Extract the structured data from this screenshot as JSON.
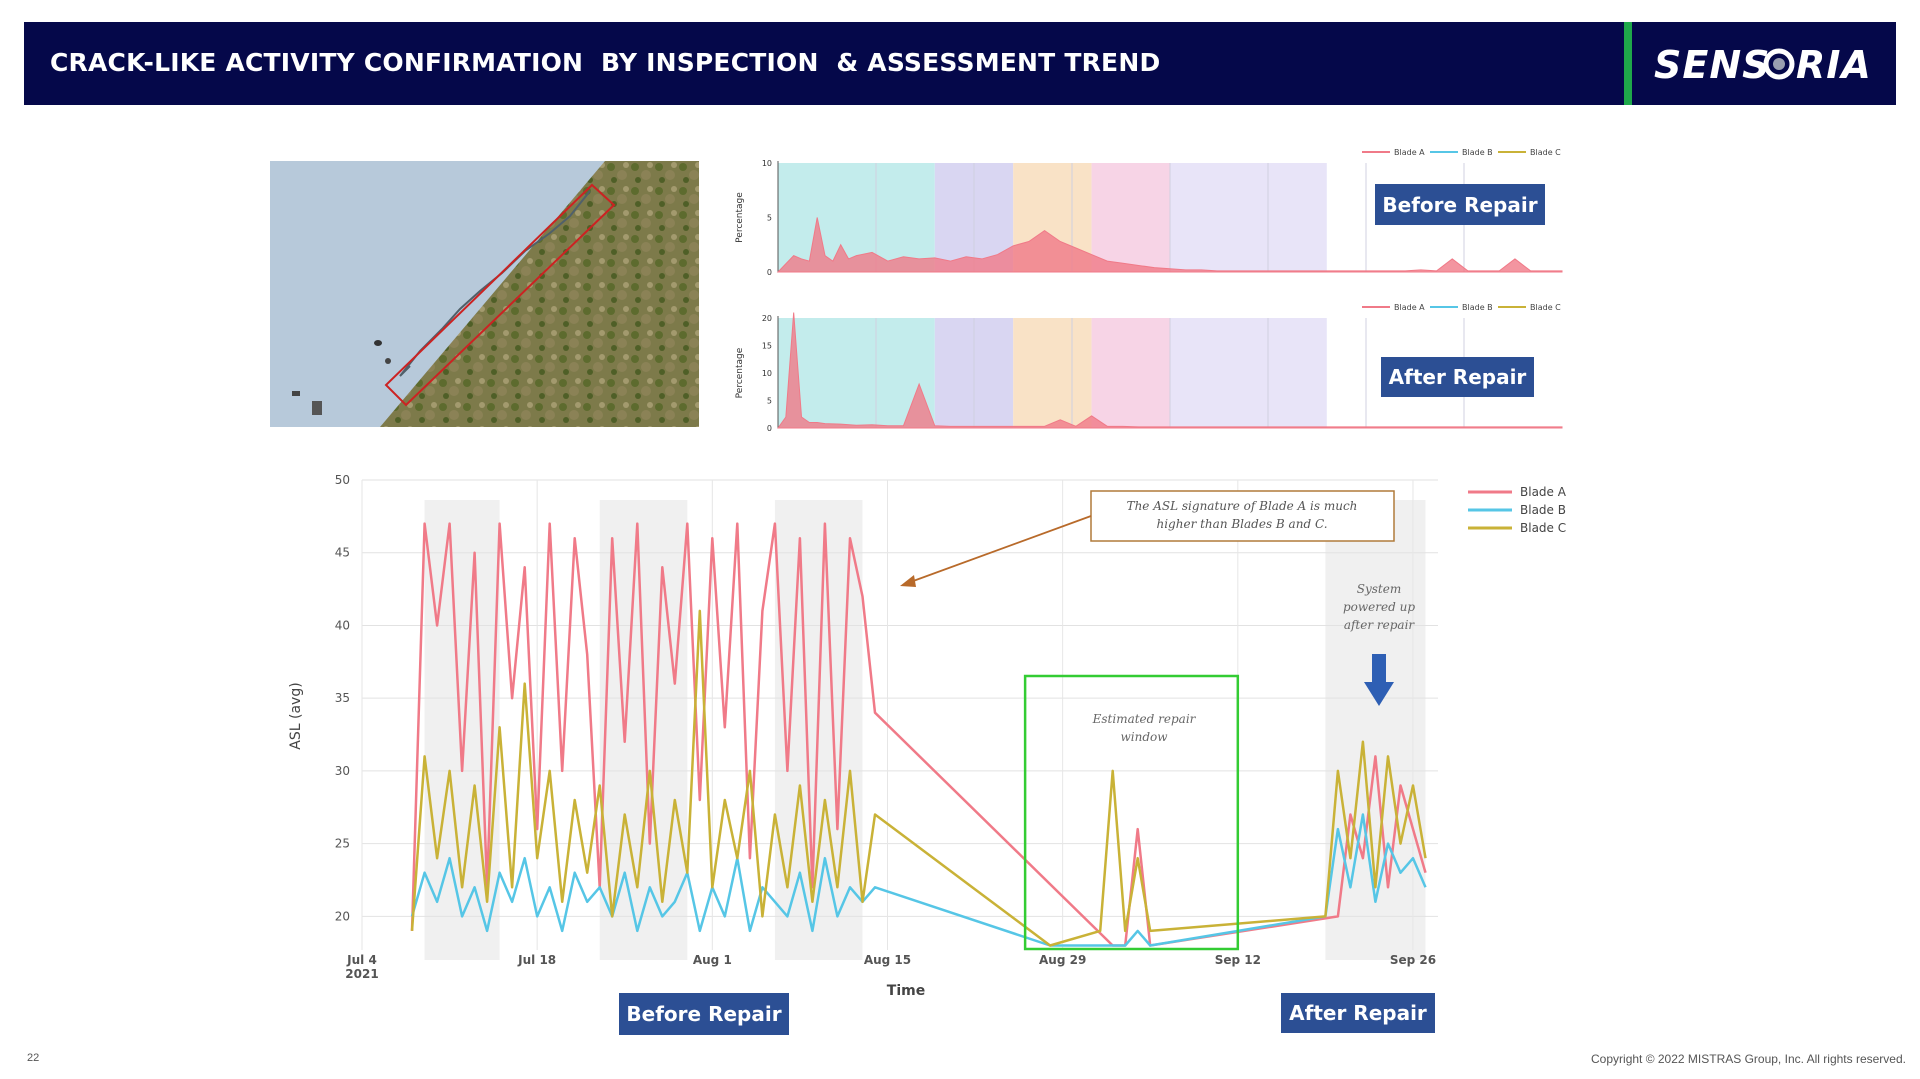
{
  "header": {
    "title": "CRACK-LIKE ACTIVITY CONFIRMATION  BY INSPECTION  & ASSESSMENT TREND",
    "logo_text": "SENSORIA",
    "accent_color": "#1fa84a",
    "background_color": "#05084a"
  },
  "photo": {
    "description_icon": "blade-crack-photo-icon",
    "highlight_color": "#cc2222"
  },
  "legend_items": [
    "Blade A",
    "Blade B",
    "Blade C"
  ],
  "colors": {
    "blade_a": "#f07a88",
    "blade_b": "#56c6e6",
    "blade_c": "#c9b237"
  },
  "labels": {
    "before_repair": "Before Repair",
    "after_repair": "After Repair"
  },
  "annotations": {
    "asl_note": "The ASL signature of  Blade A is much higher than Blades B and C.",
    "system_note": "System powered up after repair",
    "repair_window": "Estimated repair window"
  },
  "footer": {
    "page_number": "22",
    "copyright": "Copyright © 2022 MISTRAS Group, Inc. All rights reserved."
  },
  "chart_data": [
    {
      "type": "area",
      "ylabel": "Percentage",
      "yticks": [
        0,
        5,
        10
      ],
      "ylim": [
        0,
        10
      ],
      "legend": [
        "Blade A",
        "Blade B",
        "Blade C"
      ],
      "legend_placement": "top-right",
      "label": "Before Repair",
      "series": [
        {
          "name": "Blade A",
          "x": [
            0,
            2,
            3,
            4,
            5,
            6,
            7,
            8,
            9,
            10,
            12,
            14,
            16,
            18,
            20,
            22,
            24,
            26,
            28,
            30,
            32,
            34,
            36,
            38,
            40,
            42,
            44,
            46,
            48,
            50,
            52,
            54,
            56,
            58,
            60,
            62,
            64,
            66,
            68,
            70,
            72,
            74,
            76,
            78,
            80,
            82,
            84,
            86,
            88,
            90,
            92,
            94,
            96,
            98,
            100
          ],
          "y": [
            0,
            1.5,
            1.2,
            1.0,
            5,
            1.5,
            1.0,
            2.5,
            1.2,
            1.5,
            1.8,
            1.0,
            1.4,
            1.2,
            1.3,
            1.0,
            1.4,
            1.2,
            1.6,
            2.4,
            2.8,
            3.8,
            2.8,
            2.2,
            1.6,
            1.0,
            0.8,
            0.6,
            0.4,
            0.3,
            0.2,
            0.2,
            0.1,
            0.1,
            0.1,
            0.1,
            0.1,
            0.1,
            0.1,
            0.1,
            0.1,
            0.1,
            0.1,
            0.1,
            0.1,
            0.2,
            0.1,
            1.2,
            0.1,
            0.1,
            0.1,
            1.2,
            0.1,
            0.1,
            0.1
          ]
        }
      ]
    },
    {
      "type": "area",
      "ylabel": "Percentage",
      "yticks": [
        0,
        5,
        10,
        15,
        20
      ],
      "ylim": [
        0,
        20
      ],
      "legend": [
        "Blade A",
        "Blade B",
        "Blade C"
      ],
      "legend_placement": "top-right",
      "label": "After Repair",
      "series": [
        {
          "name": "Blade A",
          "x": [
            0,
            1,
            2,
            3,
            4,
            5,
            6,
            8,
            10,
            12,
            14,
            16,
            18,
            20,
            22,
            24,
            26,
            28,
            30,
            32,
            34,
            36,
            38,
            40,
            42,
            44,
            46,
            48,
            50,
            52,
            54,
            56,
            58,
            60,
            62,
            64,
            66,
            68,
            70,
            72,
            74,
            76,
            78,
            80,
            82,
            84,
            86,
            88,
            90,
            92,
            94,
            96,
            98,
            100
          ],
          "y": [
            0,
            2,
            21,
            2,
            1,
            1,
            0.8,
            0.7,
            0.5,
            0.6,
            0.4,
            0.4,
            8,
            0.4,
            0.3,
            0.3,
            0.3,
            0.3,
            0.3,
            0.3,
            0.3,
            1.5,
            0.3,
            2.2,
            0.3,
            0.3,
            0.2,
            0.2,
            0.2,
            0.2,
            0.2,
            0.2,
            0.2,
            0.2,
            0.2,
            0.2,
            0.2,
            0.2,
            0.2,
            0.2,
            0.2,
            0.2,
            0.2,
            0.2,
            0.2,
            0.2,
            0.2,
            0.2,
            0.2,
            0.2,
            0.2,
            0.2,
            0.2,
            0.2
          ]
        }
      ]
    },
    {
      "type": "line",
      "xlabel": "Time",
      "ylabel": "ASL (avg)",
      "ylim": [
        17,
        50
      ],
      "yticks": [
        20,
        25,
        30,
        35,
        40,
        45,
        50
      ],
      "xticks": [
        {
          "date": "2021-07-04",
          "label": "Jul 4",
          "sublabel": "2021"
        },
        {
          "date": "2021-07-18",
          "label": "Jul 18"
        },
        {
          "date": "2021-08-01",
          "label": "Aug 1"
        },
        {
          "date": "2021-08-15",
          "label": "Aug 15"
        },
        {
          "date": "2021-08-29",
          "label": "Aug 29"
        },
        {
          "date": "2021-09-12",
          "label": "Sep 12"
        },
        {
          "date": "2021-09-26",
          "label": "Sep 26"
        }
      ],
      "xlim": [
        "2021-07-04",
        "2021-09-28"
      ],
      "legend": [
        "Blade A",
        "Blade B",
        "Blade C"
      ],
      "legend_placement": "right",
      "grid": true,
      "repair_window": [
        "2021-08-26",
        "2021-09-12"
      ],
      "series": [
        {
          "name": "Blade A",
          "x": [
            "2021-07-08",
            "2021-07-09",
            "2021-07-10",
            "2021-07-11",
            "2021-07-12",
            "2021-07-13",
            "2021-07-14",
            "2021-07-15",
            "2021-07-16",
            "2021-07-17",
            "2021-07-18",
            "2021-07-19",
            "2021-07-20",
            "2021-07-21",
            "2021-07-22",
            "2021-07-23",
            "2021-07-24",
            "2021-07-25",
            "2021-07-26",
            "2021-07-27",
            "2021-07-28",
            "2021-07-29",
            "2021-07-30",
            "2021-07-31",
            "2021-08-01",
            "2021-08-02",
            "2021-08-03",
            "2021-08-04",
            "2021-08-05",
            "2021-08-06",
            "2021-08-07",
            "2021-08-08",
            "2021-08-09",
            "2021-08-10",
            "2021-08-11",
            "2021-08-12",
            "2021-08-13",
            "2021-08-14",
            "2021-09-02",
            "2021-09-03",
            "2021-09-04",
            "2021-09-05",
            "2021-09-20",
            "2021-09-21",
            "2021-09-22",
            "2021-09-23",
            "2021-09-24",
            "2021-09-25",
            "2021-09-26",
            "2021-09-27"
          ],
          "y": [
            19,
            47,
            40,
            47,
            30,
            45,
            22,
            47,
            35,
            44,
            26,
            47,
            30,
            46,
            38,
            22,
            46,
            32,
            47,
            25,
            44,
            36,
            47,
            28,
            46,
            33,
            47,
            24,
            41,
            47,
            30,
            46,
            22,
            47,
            26,
            46,
            42,
            34,
            18,
            18,
            26,
            18,
            20,
            27,
            24,
            31,
            22,
            29,
            26,
            23
          ]
        },
        {
          "name": "Blade B",
          "x": [
            "2021-07-08",
            "2021-07-09",
            "2021-07-10",
            "2021-07-11",
            "2021-07-12",
            "2021-07-13",
            "2021-07-14",
            "2021-07-15",
            "2021-07-16",
            "2021-07-17",
            "2021-07-18",
            "2021-07-19",
            "2021-07-20",
            "2021-07-21",
            "2021-07-22",
            "2021-07-23",
            "2021-07-24",
            "2021-07-25",
            "2021-07-26",
            "2021-07-27",
            "2021-07-28",
            "2021-07-29",
            "2021-07-30",
            "2021-07-31",
            "2021-08-01",
            "2021-08-02",
            "2021-08-03",
            "2021-08-04",
            "2021-08-05",
            "2021-08-06",
            "2021-08-07",
            "2021-08-08",
            "2021-08-09",
            "2021-08-10",
            "2021-08-11",
            "2021-08-12",
            "2021-08-13",
            "2021-08-14",
            "2021-08-28",
            "2021-09-02",
            "2021-09-03",
            "2021-09-04",
            "2021-09-05",
            "2021-09-19",
            "2021-09-20",
            "2021-09-21",
            "2021-09-22",
            "2021-09-23",
            "2021-09-24",
            "2021-09-25",
            "2021-09-26",
            "2021-09-27"
          ],
          "y": [
            20,
            23,
            21,
            24,
            20,
            22,
            19,
            23,
            21,
            24,
            20,
            22,
            19,
            23,
            21,
            22,
            20,
            23,
            19,
            22,
            20,
            21,
            23,
            19,
            22,
            20,
            24,
            19,
            22,
            21,
            20,
            23,
            19,
            24,
            20,
            22,
            21,
            22,
            18,
            18,
            18,
            19,
            18,
            20,
            26,
            22,
            27,
            21,
            25,
            23,
            24,
            22
          ]
        },
        {
          "name": "Blade C",
          "x": [
            "2021-07-08",
            "2021-07-09",
            "2021-07-10",
            "2021-07-11",
            "2021-07-12",
            "2021-07-13",
            "2021-07-14",
            "2021-07-15",
            "2021-07-16",
            "2021-07-17",
            "2021-07-18",
            "2021-07-19",
            "2021-07-20",
            "2021-07-21",
            "2021-07-22",
            "2021-07-23",
            "2021-07-24",
            "2021-07-25",
            "2021-07-26",
            "2021-07-27",
            "2021-07-28",
            "2021-07-29",
            "2021-07-30",
            "2021-07-31",
            "2021-08-01",
            "2021-08-02",
            "2021-08-03",
            "2021-08-04",
            "2021-08-05",
            "2021-08-06",
            "2021-08-07",
            "2021-08-08",
            "2021-08-09",
            "2021-08-10",
            "2021-08-11",
            "2021-08-12",
            "2021-08-13",
            "2021-08-14",
            "2021-08-28",
            "2021-09-01",
            "2021-09-02",
            "2021-09-03",
            "2021-09-04",
            "2021-09-05",
            "2021-09-19",
            "2021-09-20",
            "2021-09-21",
            "2021-09-22",
            "2021-09-23",
            "2021-09-24",
            "2021-09-25",
            "2021-09-26",
            "2021-09-27"
          ],
          "y": [
            19,
            31,
            24,
            30,
            22,
            29,
            21,
            33,
            22,
            36,
            24,
            30,
            21,
            28,
            23,
            29,
            20,
            27,
            22,
            30,
            21,
            28,
            23,
            41,
            22,
            28,
            24,
            30,
            20,
            27,
            22,
            29,
            21,
            28,
            22,
            30,
            21,
            27,
            18,
            19,
            30,
            19,
            24,
            19,
            20,
            30,
            24,
            32,
            22,
            31,
            25,
            29,
            24
          ]
        }
      ]
    }
  ]
}
